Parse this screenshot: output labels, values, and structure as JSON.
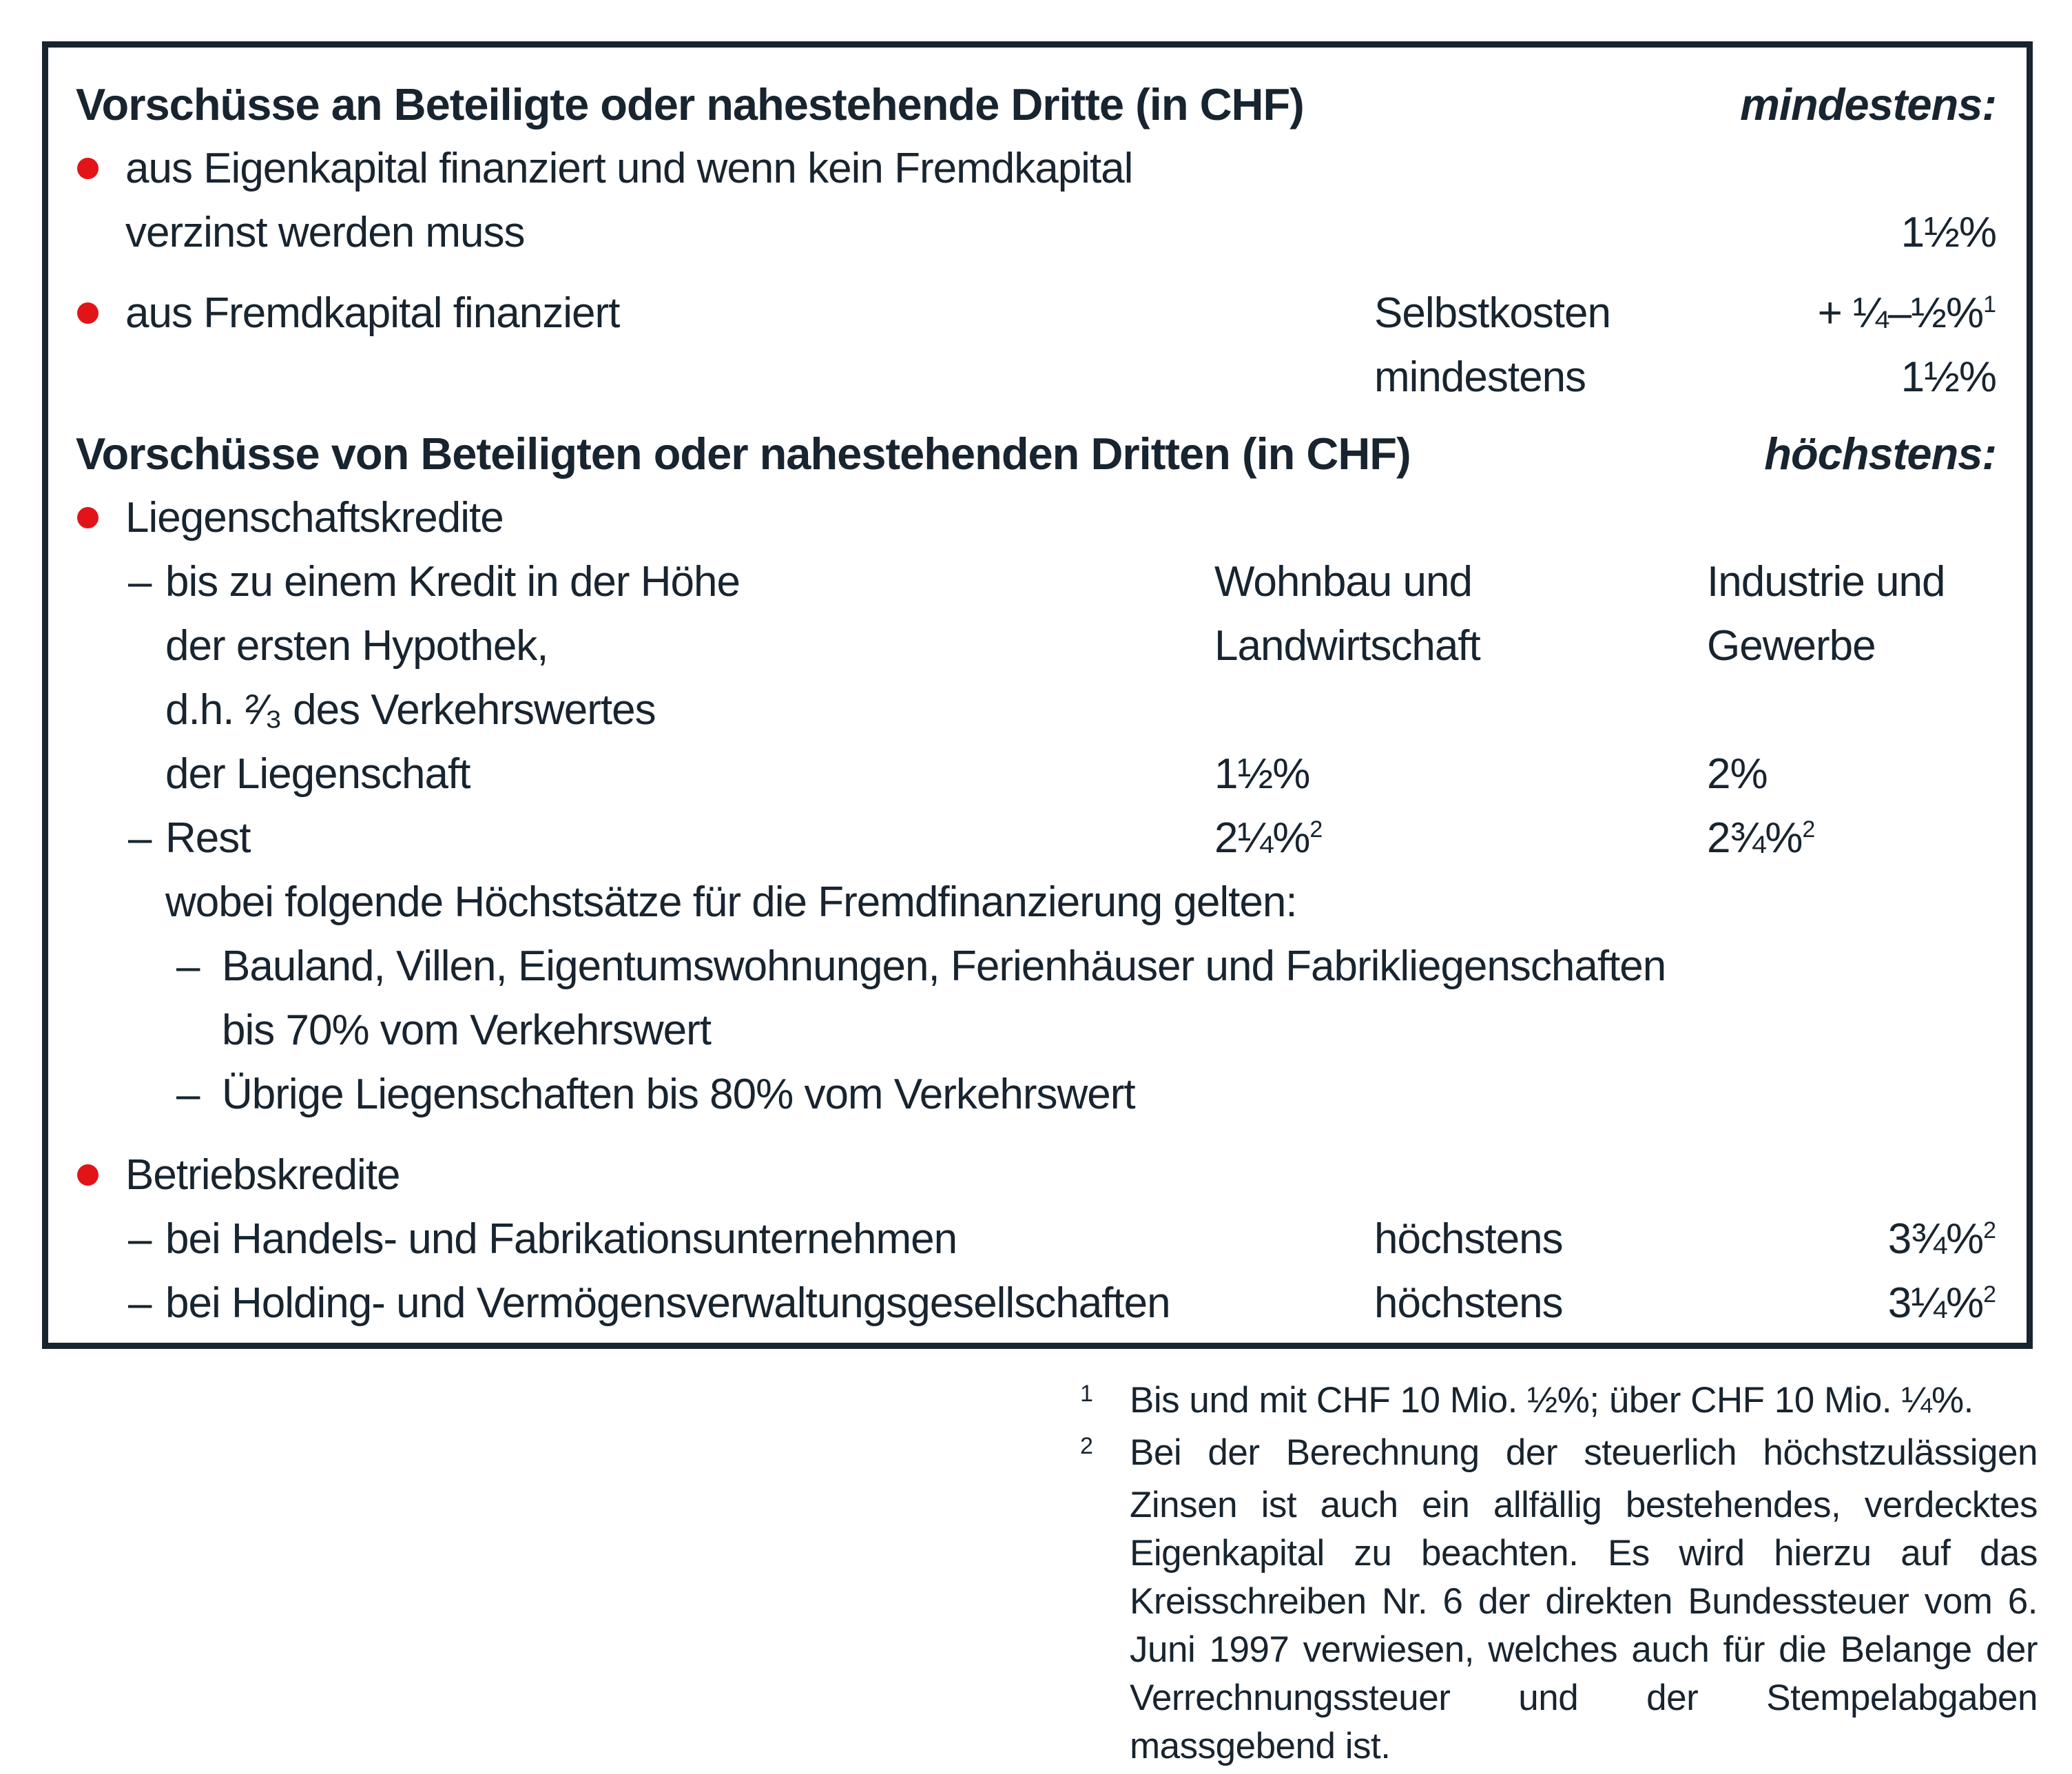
{
  "colors": {
    "ink": "#18242f",
    "accent_red": "#e21418",
    "background": "#ffffff"
  },
  "glyphs": {
    "dash": "–"
  },
  "box": {
    "sections": [
      {
        "heading": "Vorschüsse an Beteiligte oder nahestehende Dritte (in CHF)",
        "note": "mindestens:",
        "rows": [
          {
            "marker": "bullet",
            "indent": 1,
            "text": "aus Eigenkapital finanziert und wenn kein Fremdkapital"
          },
          {
            "marker": "none",
            "indent": 1,
            "text": "verzinst werden muss",
            "right": "1½%"
          },
          {
            "marker": "bullet",
            "indent": 1,
            "gap": true,
            "text": "aus Fremdkapital finanziert",
            "mid": "Selbstkosten",
            "right": "+ ¼–½%",
            "right_sup": "1"
          },
          {
            "marker": "none",
            "indent": 1,
            "mid": "mindestens",
            "right": "1½%"
          }
        ]
      },
      {
        "heading": "Vorschüsse von Beteiligten oder nahestehenden Dritten (in CHF)",
        "note": "höchstens:",
        "rows": [
          {
            "marker": "bullet",
            "indent": 1,
            "text": "Liegenschaftskredite"
          },
          {
            "marker": "dash",
            "indent": 2,
            "text": "bis zu einem Kredit in der Höhe",
            "col2": "Wohnbau und",
            "col3": "Industrie und"
          },
          {
            "marker": "none",
            "indent": 2,
            "text": "der ersten Hypothek,",
            "col2": "Landwirtschaft",
            "col3": "Gewerbe"
          },
          {
            "marker": "none",
            "indent": 2,
            "text": "d.h. ²⁄₃ des Verkehrswertes"
          },
          {
            "marker": "none",
            "indent": 2,
            "text": "der Liegenschaft",
            "col2": "1½%",
            "col3": "2%"
          },
          {
            "marker": "dash",
            "indent": 2,
            "text": "Rest",
            "col2": "2¼%",
            "col2_sup": "2",
            "col3": "2¾%",
            "col3_sup": "2"
          },
          {
            "marker": "none",
            "indent": 2,
            "text": "wobei folgende Höchstsätze für die Fremdfinanzierung gelten:"
          },
          {
            "marker": "dash",
            "indent": 3,
            "text": "Bauland, Villen, Eigentumswohnungen, Ferienhäuser und Fabrikliegenschaften"
          },
          {
            "marker": "none",
            "indent": 3,
            "text": "bis 70% vom Verkehrswert"
          },
          {
            "marker": "dash",
            "indent": 3,
            "text": "Übrige Liegenschaften bis 80% vom Verkehrswert"
          },
          {
            "marker": "bullet",
            "indent": 1,
            "gap": true,
            "text": "Betriebskredite"
          },
          {
            "marker": "dash",
            "indent": 2,
            "text": "bei Handels- und Fabrikationsunternehmen",
            "mid": "höchstens",
            "right": "3¾%",
            "right_sup": "2"
          },
          {
            "marker": "dash",
            "indent": 2,
            "text": "bei Holding- und Vermögensverwaltungsgesellschaften",
            "mid": "höchstens",
            "right": "3¼%",
            "right_sup": "2"
          }
        ]
      }
    ]
  },
  "footnotes": [
    {
      "marker": "1",
      "text": "Bis und mit CHF 10 Mio. ½%; über CHF 10 Mio. ¼%."
    },
    {
      "marker": "2",
      "text": "Bei der Berechnung der steuerlich höchstzulässigen Zinsen ist auch ein allfällig bestehendes, verdecktes Eigenkapital zu beachten. Es wird hierzu auf das Kreisschreiben Nr. 6 der direkten Bundessteuer vom 6. Juni 1997 verwiesen, welches auch für die Belange der Verrechnungssteuer und der Stempelabgaben massgebend ist."
    }
  ]
}
